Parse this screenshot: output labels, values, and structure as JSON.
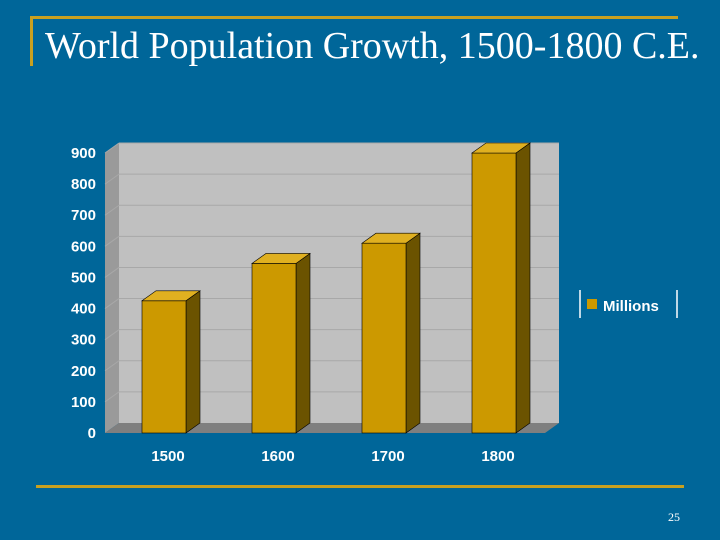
{
  "slide": {
    "title": "World Population Growth, 1500-1800 C.E.",
    "page_number": "25"
  },
  "colors": {
    "background": "#006699",
    "accent": "#c8a020",
    "bar_front": "#cc9900",
    "bar_side": "#6b5300",
    "plot_wall": "#c0c0c0",
    "text": "#ffffff"
  },
  "chart_data": {
    "type": "bar",
    "style": "3d-column",
    "categories": [
      "1500",
      "1600",
      "1700",
      "1800"
    ],
    "series": [
      {
        "name": "Millions",
        "values": [
          425,
          545,
          610,
          900
        ]
      }
    ],
    "title": "",
    "xlabel": "",
    "ylabel": "",
    "ylim": [
      0,
      900
    ],
    "yticks": [
      "0",
      "100",
      "200",
      "300",
      "400",
      "500",
      "600",
      "700",
      "800",
      "900"
    ],
    "grid": true,
    "legend": "right"
  }
}
